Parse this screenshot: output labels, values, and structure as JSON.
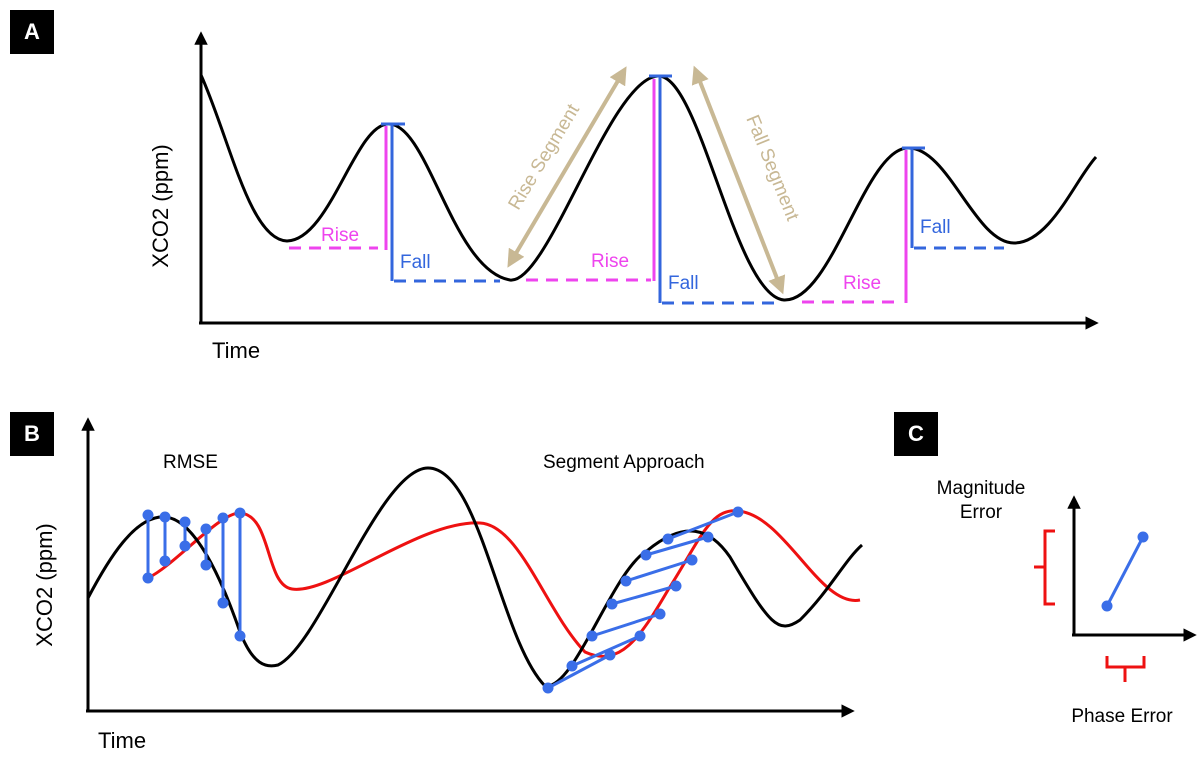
{
  "panels": {
    "a": {
      "badge": "A",
      "y_axis_label": "XCO2 (ppm)",
      "x_axis_label": "Time",
      "rise_labels": [
        "Rise",
        "Rise",
        "Rise"
      ],
      "fall_labels": [
        "Fall",
        "Fall",
        "Fall"
      ],
      "rise_segment_label": "Rise Segment",
      "fall_segment_label": "Fall Segment"
    },
    "b": {
      "badge": "B",
      "y_axis_label": "XCO2 (ppm)",
      "x_axis_label": "Time",
      "rmse_label": "RMSE",
      "segment_label": "Segment Approach"
    },
    "c": {
      "badge": "C",
      "magnitude_label_line1": "Magnitude",
      "magnitude_label_line2": "Error",
      "phase_label": "Phase Error"
    }
  },
  "colors": {
    "curve": "#000000",
    "rise": "#ee44ee",
    "fall": "#3366dd",
    "segment_arrow": "#c8b894",
    "model_curve": "#ee1111",
    "match_line": "#3a6ee8",
    "bracket": "#ee1111"
  }
}
